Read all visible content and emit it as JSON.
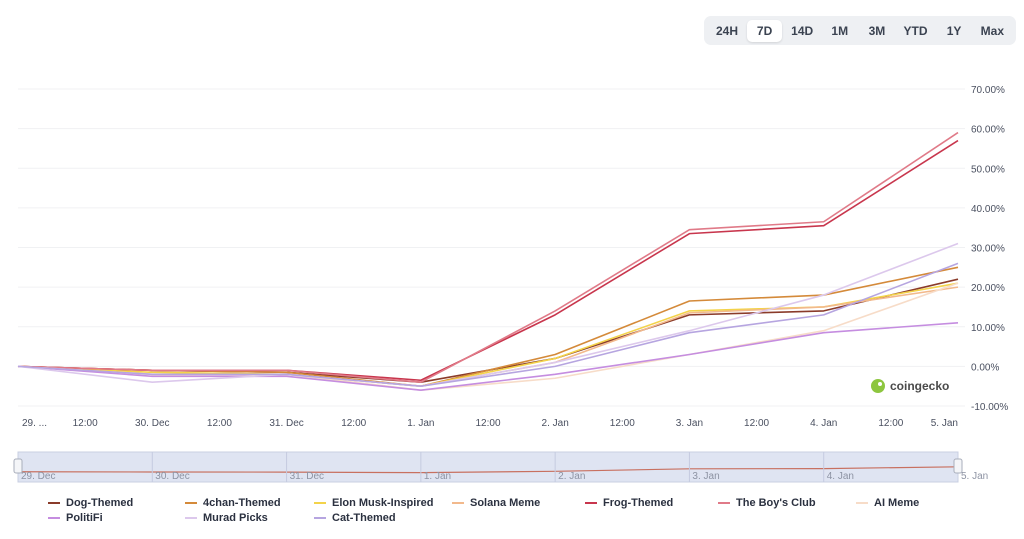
{
  "range_selector": {
    "options": [
      "24H",
      "7D",
      "14D",
      "1M",
      "3M",
      "YTD",
      "1Y",
      "Max"
    ],
    "active": "7D"
  },
  "watermark": {
    "text": "coingecko",
    "icon": "coingecko-logo-icon"
  },
  "chart_data": {
    "type": "line",
    "title": "",
    "xlabel": "",
    "ylabel": "",
    "x_unit": "days",
    "xlim": [
      0,
      7
    ],
    "ylim": [
      -10,
      70
    ],
    "yticks": [
      70,
      60,
      50,
      40,
      30,
      20,
      10,
      0,
      -10
    ],
    "ytick_labels": [
      "70.00%",
      "60.00%",
      "50.00%",
      "40.00%",
      "30.00%",
      "20.00%",
      "10.00%",
      "0.00%",
      "-10.00%"
    ],
    "xtick_positions": [
      0,
      0.5,
      1,
      1.5,
      2,
      2.5,
      3,
      3.5,
      4,
      4.5,
      5,
      5.5,
      6,
      6.5,
      7
    ],
    "xtick_labels": [
      "29. ...",
      "12:00",
      "30. Dec",
      "12:00",
      "31. Dec",
      "12:00",
      "1. Jan",
      "12:00",
      "2. Jan",
      "12:00",
      "3. Jan",
      "12:00",
      "4. Jan",
      "12:00",
      "5. Jan"
    ],
    "navigator_labels": [
      "29. Dec",
      "30. Dec",
      "31. Dec",
      "1. Jan",
      "2. Jan",
      "3. Jan",
      "4. Jan",
      "5. Jan"
    ],
    "navigator_positions": [
      0,
      1,
      2,
      3,
      4,
      5,
      6,
      7
    ],
    "navigator_series": {
      "x": [
        0,
        1,
        2,
        3,
        4,
        5,
        6,
        7
      ],
      "values": [
        0,
        -1,
        -1.5,
        -4,
        2,
        13,
        14,
        22
      ]
    },
    "grid": true,
    "legend_position": "bottom",
    "x": [
      0,
      1,
      2,
      3,
      4,
      5,
      6,
      7
    ],
    "series": [
      {
        "name": "Dog-Themed",
        "color": "#8a3b2a",
        "values": [
          0,
          -1,
          -1.5,
          -4,
          2,
          13,
          14,
          22
        ]
      },
      {
        "name": "4chan-Themed",
        "color": "#d48a3a",
        "values": [
          0,
          -1,
          -1.5,
          -5,
          3,
          16.5,
          18,
          25
        ]
      },
      {
        "name": "Elon Musk-Inspired",
        "color": "#f3d34a",
        "values": [
          0,
          -1.5,
          -2,
          -5,
          2,
          14,
          15,
          21
        ]
      },
      {
        "name": "Solana Meme",
        "color": "#f2b98c",
        "values": [
          0,
          -2,
          -2,
          -5,
          1,
          13.5,
          15,
          20
        ]
      },
      {
        "name": "Frog-Themed",
        "color": "#c8364d",
        "values": [
          0,
          -1,
          -1,
          -3.5,
          13,
          33.5,
          35.5,
          57
        ]
      },
      {
        "name": "The Boy's Club",
        "color": "#e07a88",
        "values": [
          0,
          -1,
          -1,
          -4,
          14,
          34.5,
          36.5,
          59
        ]
      },
      {
        "name": "AI Meme",
        "color": "#f7dcc8",
        "values": [
          0,
          -2,
          -2,
          -6,
          -3,
          3,
          9,
          21
        ]
      },
      {
        "name": "PolitiFi",
        "color": "#c58de0",
        "values": [
          0,
          -2.5,
          -2.5,
          -6,
          -2,
          3,
          8.5,
          11
        ]
      },
      {
        "name": "Murad Picks",
        "color": "#dcc8ec",
        "values": [
          0,
          -4,
          -2,
          -5,
          1,
          9,
          18,
          31
        ]
      },
      {
        "name": "Cat-Themed",
        "color": "#b6a5e0",
        "values": [
          0,
          -2,
          -2,
          -5,
          0,
          8.5,
          13,
          26
        ]
      }
    ]
  }
}
